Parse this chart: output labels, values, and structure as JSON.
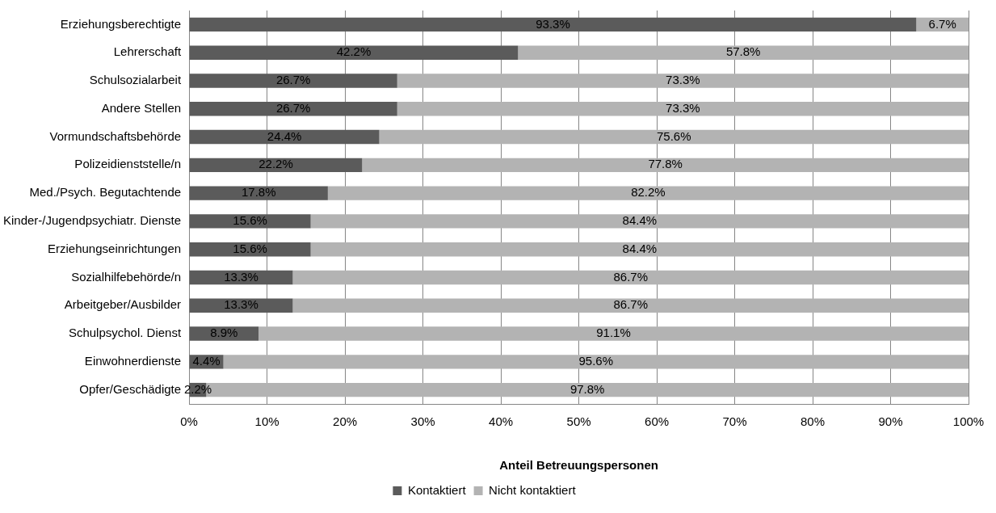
{
  "chart_data": {
    "type": "bar",
    "orientation": "horizontal",
    "stacked": true,
    "categories": [
      "Erziehungsberechtigte",
      "Lehrerschaft",
      "Schulsozialarbeit",
      "Andere Stellen",
      "Vormundschaftsbehörde",
      "Polizeidienststelle/n",
      "Med./Psych. Begutachtende",
      "Kinder-/Jugendpsychiatr. Dienste",
      "Erziehungseinrichtungen",
      "Sozialhilfebehörde/n",
      "Arbeitgeber/Ausbilder",
      "Schulpsychol. Dienst",
      "Einwohnerdienste",
      "Opfer/Geschädigte"
    ],
    "series": [
      {
        "name": "Kontaktiert",
        "color": "#5b5b5b",
        "values": [
          93.3,
          42.2,
          26.7,
          26.7,
          24.4,
          22.2,
          17.8,
          15.6,
          15.6,
          13.3,
          13.3,
          8.9,
          4.4,
          2.2
        ],
        "value_labels": [
          "93.3%",
          "42.2%",
          "26.7%",
          "26.7%",
          "24.4%",
          "22.2%",
          "17.8%",
          "15.6%",
          "15.6%",
          "13.3%",
          "13.3%",
          "8.9%",
          "4.4%",
          "2.2%"
        ]
      },
      {
        "name": "Nicht kontaktiert",
        "color": "#b3b3b3",
        "values": [
          6.7,
          57.8,
          73.3,
          73.3,
          75.6,
          77.8,
          82.2,
          84.4,
          84.4,
          86.7,
          86.7,
          91.1,
          95.6,
          97.8
        ],
        "value_labels": [
          "6.7%",
          "57.8%",
          "73.3%",
          "73.3%",
          "75.6%",
          "77.8%",
          "82.2%",
          "84.4%",
          "84.4%",
          "86.7%",
          "86.7%",
          "91.1%",
          "95.6%",
          "97.8%"
        ]
      }
    ],
    "xlabel": "Anteil Betreuungspersonen",
    "xlim": [
      0,
      100
    ],
    "xticks": [
      {
        "value": 0,
        "label": "0%"
      },
      {
        "value": 10,
        "label": "10%"
      },
      {
        "value": 20,
        "label": "20%"
      },
      {
        "value": 30,
        "label": "30%"
      },
      {
        "value": 40,
        "label": "40%"
      },
      {
        "value": 50,
        "label": "50%"
      },
      {
        "value": 60,
        "label": "60%"
      },
      {
        "value": 70,
        "label": "70%"
      },
      {
        "value": 80,
        "label": "80%"
      },
      {
        "value": 90,
        "label": "90%"
      },
      {
        "value": 100,
        "label": "100%"
      }
    ],
    "grid": "x",
    "legend": "bottom"
  }
}
